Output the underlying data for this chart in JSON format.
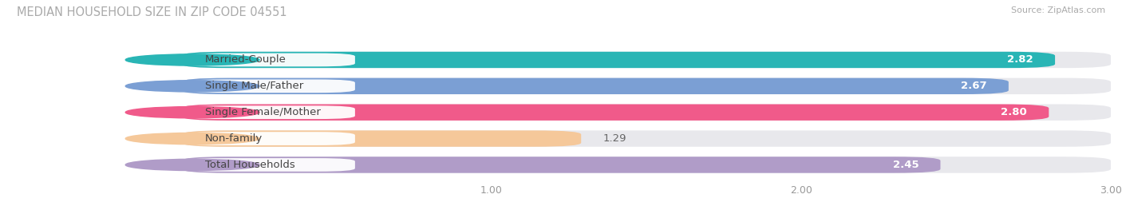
{
  "title": "MEDIAN HOUSEHOLD SIZE IN ZIP CODE 04551",
  "source": "Source: ZipAtlas.com",
  "categories": [
    "Married-Couple",
    "Single Male/Father",
    "Single Female/Mother",
    "Non-family",
    "Total Households"
  ],
  "values": [
    2.82,
    2.67,
    2.8,
    1.29,
    2.45
  ],
  "bar_colors": [
    "#29b5b5",
    "#7b9fd4",
    "#f05a8a",
    "#f5c89a",
    "#b09cc8"
  ],
  "xlim_data": [
    0,
    3.0
  ],
  "xticks": [
    1.0,
    2.0,
    3.0
  ],
  "background_color": "#ffffff",
  "bar_bg_color": "#e8e8ec",
  "title_fontsize": 10.5,
  "bar_height": 0.62,
  "label_fontsize": 9.5,
  "value_fontsize": 9.5,
  "tick_fontsize": 9,
  "value_threshold": 1.8
}
